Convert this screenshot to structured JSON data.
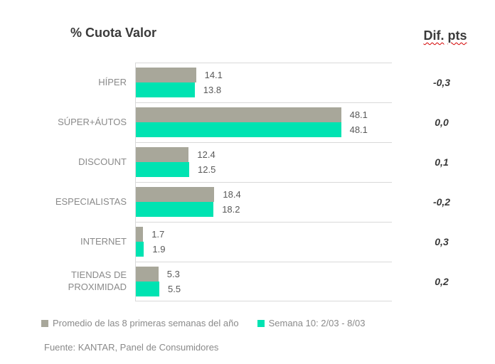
{
  "header": {
    "title": "% Cuota Valor",
    "dif_word1": "Dif.",
    "dif_word2": "pts"
  },
  "colors": {
    "bar_average": "#a8a79a",
    "bar_week": "#00e3b2",
    "gridline": "#d9d9d9",
    "title_text": "#3a3a3a",
    "category_text": "#8a8a8a",
    "value_text": "#595959",
    "spellcheck_underline": "#d40000"
  },
  "chart_data": {
    "type": "bar",
    "orientation": "horizontal",
    "title": "% Cuota Valor",
    "categories": [
      "HÍPER",
      "SÚPER+ÁUTOS",
      "DISCOUNT",
      "ESPECIALISTAS",
      "INTERNET",
      "TIENDAS DE PROXIMIDAD"
    ],
    "series": [
      {
        "name": "Promedio de las 8 primeras semanas del año",
        "color": "#a8a79a",
        "values": [
          14.1,
          48.1,
          12.4,
          18.4,
          1.7,
          5.3
        ]
      },
      {
        "name": "Semana 10: 2/03 - 8/03",
        "color": "#00e3b2",
        "values": [
          13.8,
          48.1,
          12.5,
          18.2,
          1.9,
          5.5
        ]
      }
    ],
    "dif_pts_label": "Dif. pts",
    "dif_pts": [
      "-0,3",
      "0,0",
      "0,1",
      "-0,2",
      "0,3",
      "0,2"
    ],
    "xlim": [
      0,
      60
    ],
    "grid": true,
    "legend_position": "bottom",
    "value_decimal_separator": ".",
    "dif_decimal_separator": ","
  },
  "legend": {
    "items": [
      {
        "label": "Promedio de las 8 primeras semanas del año"
      },
      {
        "label": "Semana 10: 2/03 - 8/03"
      }
    ]
  },
  "footer": {
    "source": "Fuente: KANTAR, Panel de Consumidores"
  }
}
